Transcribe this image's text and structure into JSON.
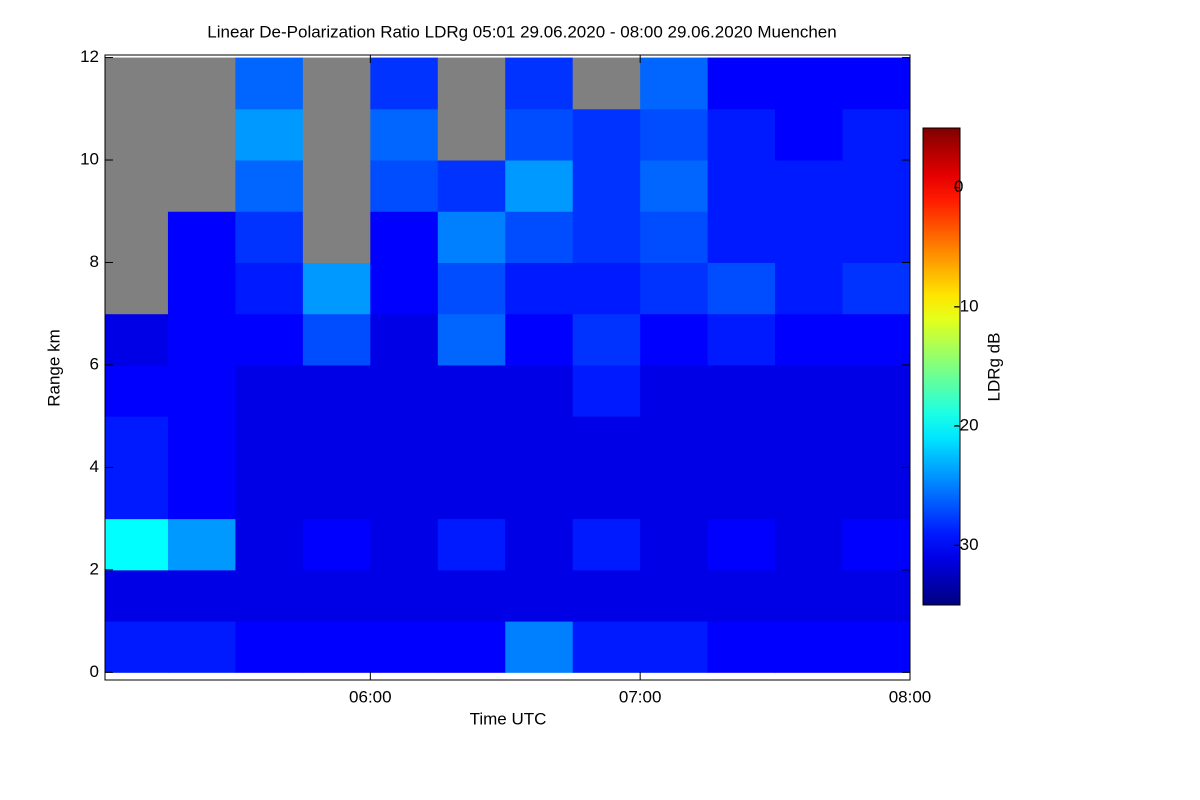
{
  "chart_data": {
    "type": "heatmap",
    "title": "Linear De-Polarization Ratio LDRg   05:01 29.06.2020 - 08:00 29.06.2020 Muenchen",
    "x_label": "Time UTC",
    "y_label": "Range km",
    "colorbar_label": "LDRg dB",
    "xlim": [
      5.0167,
      8.0
    ],
    "xticks": [
      {
        "value": 6,
        "label": "06:00"
      },
      {
        "value": 7,
        "label": "07:00"
      },
      {
        "value": 8,
        "label": "08:00"
      }
    ],
    "ylim": [
      -0.15,
      12.05
    ],
    "yticks": [
      0,
      2,
      4,
      6,
      8,
      10,
      12
    ],
    "zlim": [
      -35,
      5
    ],
    "zticks": [
      -30,
      -20,
      -10,
      0
    ],
    "colormap": "jet",
    "missing_color": "#808080",
    "x_edges": [
      5.0167,
      5.25,
      5.5,
      5.75,
      6.0,
      6.25,
      6.5,
      6.75,
      7.0,
      7.25,
      7.5,
      7.75,
      8.0
    ],
    "y_edges": [
      0,
      1,
      2,
      3,
      4,
      5,
      6,
      7,
      8,
      9,
      10,
      11,
      12
    ],
    "z": [
      [
        -29,
        -29,
        -30,
        -30,
        -30,
        -30,
        -25,
        -29,
        -29,
        -30,
        -30,
        -30
      ],
      [
        -31,
        -31,
        -31,
        -31,
        -31,
        -31,
        -31,
        -31,
        -31,
        -31,
        -31,
        -31
      ],
      [
        -20,
        -24,
        -31,
        -30,
        -31,
        -29,
        -31,
        -29,
        -31,
        -30,
        -31,
        -30
      ],
      [
        -29,
        -30,
        -31,
        -31,
        -31,
        -31,
        -31,
        -31,
        -31,
        -31,
        -31,
        -31
      ],
      [
        -29,
        -30,
        -31,
        -31,
        -31,
        -31,
        -31,
        -31,
        -31,
        -31,
        -31,
        -31
      ],
      [
        -30,
        -30,
        -31,
        -31,
        -31,
        -31,
        -31,
        -29,
        -31,
        -31,
        -31,
        -31
      ],
      [
        -31,
        -30,
        -30,
        -27,
        -31,
        -26,
        -30,
        -28,
        -30,
        -29,
        -30,
        -30
      ],
      [
        null,
        -30,
        -29,
        -24,
        -30,
        -27,
        -29,
        -29,
        -28,
        -27,
        -29,
        -28
      ],
      [
        null,
        -30,
        -28,
        null,
        -30,
        -25,
        -27,
        -28,
        -27,
        -29,
        -29,
        -29
      ],
      [
        null,
        null,
        -26,
        null,
        -27,
        -28,
        -24,
        -28,
        -26,
        -29,
        -29,
        -29
      ],
      [
        null,
        null,
        -24,
        null,
        -26,
        null,
        -27,
        -28,
        -27,
        -29,
        -30,
        -29
      ],
      [
        null,
        null,
        -26,
        null,
        -28,
        null,
        -28,
        null,
        -26,
        -30,
        -30,
        -30
      ]
    ]
  }
}
